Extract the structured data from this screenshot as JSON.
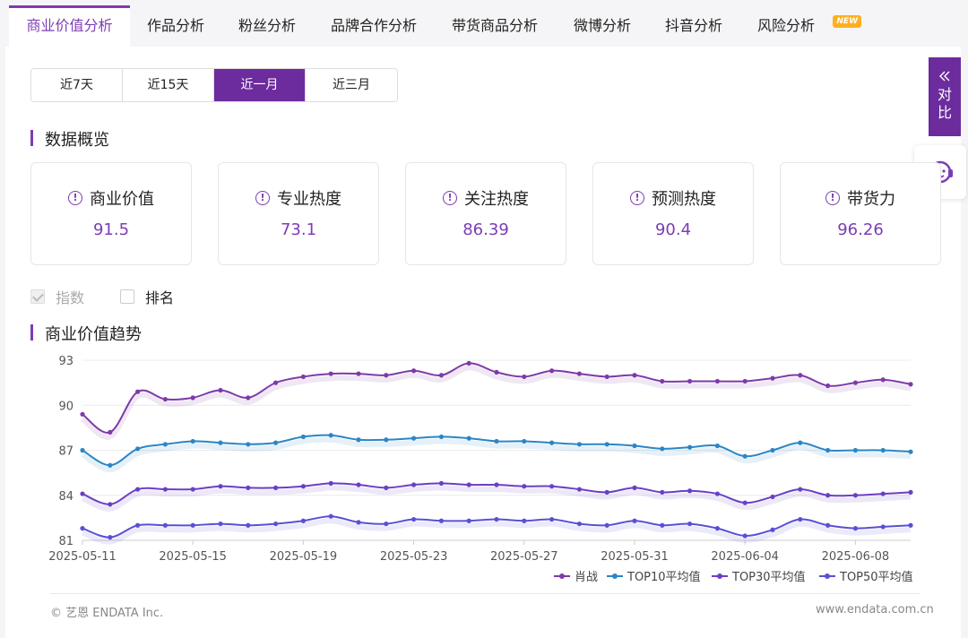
{
  "tabs": [
    {
      "label": "商业价值分析",
      "active": true
    },
    {
      "label": "作品分析"
    },
    {
      "label": "粉丝分析"
    },
    {
      "label": "品牌合作分析"
    },
    {
      "label": "带货商品分析"
    },
    {
      "label": "微博分析"
    },
    {
      "label": "抖音分析"
    },
    {
      "label": "风险分析",
      "badge": "NEW"
    }
  ],
  "ranges": [
    "近7天",
    "近15天",
    "近一月",
    "近三月"
  ],
  "active_range": "近一月",
  "compare_tab": {
    "icon": "double-chevron-left-icon",
    "label1": "对",
    "label2": "比"
  },
  "support_icon": "customer-service-icon",
  "overview": {
    "title": "数据概览",
    "cards": [
      {
        "label": "商业价值",
        "value": "91.5"
      },
      {
        "label": "专业热度",
        "value": "73.1"
      },
      {
        "label": "关注热度",
        "value": "86.39"
      },
      {
        "label": "预测热度",
        "value": "90.4"
      },
      {
        "label": "带货力",
        "value": "96.26"
      }
    ]
  },
  "toggles": {
    "index_label": "指数",
    "index_checked": true,
    "rank_label": "排名",
    "rank_checked": false
  },
  "trend_title": "商业价值趋势",
  "footer": {
    "copyright": "© 艺恩 ENDATA Inc.",
    "site": "www.endata.com.cn"
  },
  "colors": {
    "brand": "#7d3cb5",
    "xiaozhan": "#7e3aa8",
    "top10": "#2b86c5",
    "top30": "#6a3fc6",
    "top50": "#5a4fd6"
  },
  "chart_data": {
    "type": "line",
    "x": [
      "2025-05-11",
      "2025-05-12",
      "2025-05-13",
      "2025-05-14",
      "2025-05-15",
      "2025-05-16",
      "2025-05-17",
      "2025-05-18",
      "2025-05-19",
      "2025-05-20",
      "2025-05-21",
      "2025-05-22",
      "2025-05-23",
      "2025-05-24",
      "2025-05-25",
      "2025-05-26",
      "2025-05-27",
      "2025-05-28",
      "2025-05-29",
      "2025-05-30",
      "2025-05-31",
      "2025-06-01",
      "2025-06-02",
      "2025-06-03",
      "2025-06-04",
      "2025-06-05",
      "2025-06-06",
      "2025-06-07",
      "2025-06-08",
      "2025-06-09",
      "2025-06-10"
    ],
    "x_tick_labels": [
      "2025-05-11",
      "2025-05-15",
      "2025-05-19",
      "2025-05-23",
      "2025-05-27",
      "2025-05-31",
      "2025-06-04",
      "2025-06-08"
    ],
    "x_tick_indices": [
      0,
      4,
      8,
      12,
      16,
      20,
      24,
      28
    ],
    "y_ticks": [
      93,
      90,
      87,
      84,
      81
    ],
    "ylim": [
      81,
      93
    ],
    "grid": true,
    "legend": "bottom-right",
    "series": [
      {
        "name": "肖战",
        "values": [
          89.4,
          88.2,
          90.9,
          90.4,
          90.5,
          91.0,
          90.5,
          91.5,
          91.9,
          92.1,
          92.1,
          92.0,
          92.3,
          92.0,
          92.8,
          92.2,
          91.9,
          92.3,
          92.1,
          91.9,
          92.0,
          91.6,
          91.6,
          91.6,
          91.6,
          91.8,
          92.0,
          91.3,
          91.5,
          91.7,
          91.4
        ]
      },
      {
        "name": "TOP10平均值",
        "values": [
          87.0,
          86.0,
          87.1,
          87.4,
          87.6,
          87.5,
          87.4,
          87.5,
          87.9,
          88.0,
          87.7,
          87.7,
          87.8,
          87.9,
          87.8,
          87.6,
          87.6,
          87.5,
          87.4,
          87.4,
          87.3,
          87.1,
          87.2,
          87.3,
          86.6,
          87.0,
          87.5,
          87.0,
          87.0,
          87.0,
          86.9
        ]
      },
      {
        "name": "TOP30平均值",
        "values": [
          84.1,
          83.4,
          84.4,
          84.4,
          84.4,
          84.6,
          84.5,
          84.5,
          84.6,
          84.8,
          84.7,
          84.5,
          84.7,
          84.8,
          84.7,
          84.7,
          84.6,
          84.6,
          84.4,
          84.2,
          84.5,
          84.2,
          84.3,
          84.1,
          83.5,
          83.9,
          84.4,
          84.0,
          84.0,
          84.1,
          84.2
        ]
      },
      {
        "name": "TOP50平均值",
        "values": [
          81.8,
          81.2,
          82.0,
          82.0,
          82.0,
          82.1,
          82.0,
          82.1,
          82.3,
          82.6,
          82.2,
          82.1,
          82.4,
          82.3,
          82.3,
          82.4,
          82.3,
          82.4,
          82.1,
          82.0,
          82.3,
          82.0,
          82.1,
          81.8,
          81.3,
          81.7,
          82.4,
          82.0,
          81.8,
          81.9,
          82.0
        ]
      }
    ]
  }
}
